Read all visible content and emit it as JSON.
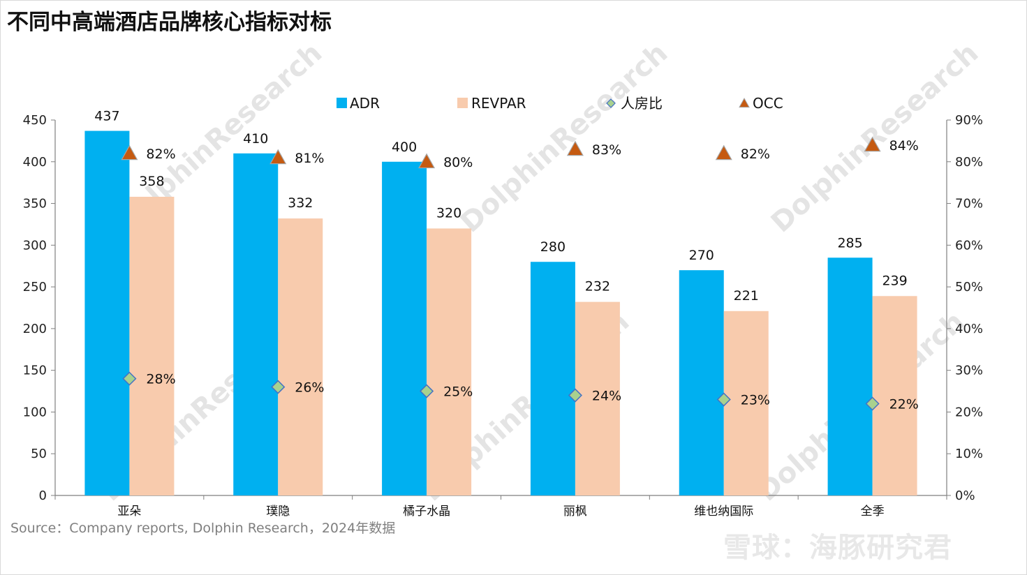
{
  "page": {
    "title": "不同中高端酒店品牌核心指标对标",
    "source": "Source：Company reports, Dolphin Research，2024年数据",
    "watermark": "DolphinResearch",
    "footer_brand": "雪球：海豚研究君"
  },
  "colors": {
    "adr": "#00B0F0",
    "revpar": "#F8CBAD",
    "ratio_marker": "#A9D18E",
    "ratio_marker_edge": "#4472C4",
    "occ_marker": "#C55A11",
    "occ_marker_edge": "#A5A5A5",
    "axis": "#7f7f7f"
  },
  "chart_data": {
    "type": "bar",
    "title": "不同中高端酒店品牌核心指标对标",
    "categories": [
      "亚朵",
      "璞隐",
      "橘子水晶",
      "丽枫",
      "维也纳国际",
      "全季"
    ],
    "series": [
      {
        "name": "ADR",
        "kind": "bar",
        "axis": "left",
        "values": [
          437,
          410,
          400,
          280,
          270,
          285
        ],
        "labels": [
          "437",
          "410",
          "400",
          "280",
          "270",
          "285"
        ]
      },
      {
        "name": "REVPAR",
        "kind": "bar",
        "axis": "left",
        "values": [
          358,
          332,
          320,
          232,
          221,
          239
        ],
        "labels": [
          "358",
          "332",
          "320",
          "232",
          "221",
          "239"
        ]
      },
      {
        "name": "人房比",
        "kind": "scatter",
        "marker": "diamond",
        "axis": "right",
        "values": [
          28,
          26,
          25,
          24,
          23,
          22
        ],
        "labels": [
          "28%",
          "26%",
          "25%",
          "24%",
          "23%",
          "22%"
        ]
      },
      {
        "name": "OCC",
        "kind": "scatter",
        "marker": "triangle",
        "axis": "right",
        "values": [
          82,
          81,
          80,
          83,
          82,
          84
        ],
        "labels": [
          "82%",
          "81%",
          "80%",
          "83%",
          "82%",
          "84%"
        ]
      }
    ],
    "y_left": {
      "min": 0,
      "max": 450,
      "ticks": [
        "0",
        "50",
        "100",
        "150",
        "200",
        "250",
        "300",
        "350",
        "400",
        "450"
      ]
    },
    "y_right": {
      "min": 0,
      "max": 90,
      "ticks": [
        "0%",
        "10%",
        "20%",
        "30%",
        "40%",
        "50%",
        "60%",
        "70%",
        "80%",
        "90%"
      ]
    },
    "legend": {
      "position": "top",
      "entries": [
        "ADR",
        "REVPAR",
        "人房比",
        "OCC"
      ]
    },
    "grid": false
  }
}
